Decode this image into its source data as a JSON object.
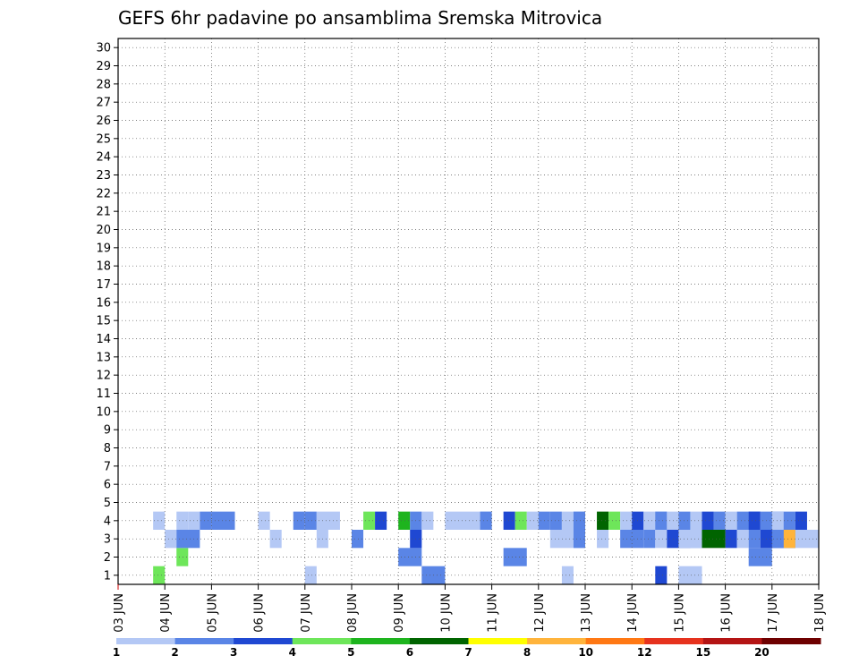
{
  "chart_data": {
    "type": "heatmap",
    "title": "GEFS 6hr padavine po ansamblima Sremska Mitrovica",
    "x_tick_labels": [
      "03 JUN",
      "04 JUN",
      "05 JUN",
      "06 JUN",
      "07 JUN",
      "08 JUN",
      "09 JUN",
      "10 JUN",
      "11 JUN",
      "12 JUN",
      "13 JUN",
      "14 JUN",
      "15 JUN",
      "16 JUN",
      "17 JUN",
      "18 JUN"
    ],
    "y_tick_labels": [
      "1",
      "2",
      "3",
      "4",
      "5",
      "6",
      "7",
      "8",
      "9",
      "10",
      "11",
      "12",
      "13",
      "14",
      "15",
      "16",
      "17",
      "18",
      "19",
      "20",
      "21",
      "22",
      "23",
      "24",
      "25",
      "26",
      "27",
      "28",
      "29",
      "30"
    ],
    "xlabel": "",
    "ylabel": "",
    "xlim_days": [
      0,
      15
    ],
    "ylim_members": [
      0.5,
      30.5
    ],
    "steps_per_day": 4,
    "grid": "dotted",
    "colorbar": {
      "labels": [
        "1",
        "2",
        "3",
        "4",
        "5",
        "6",
        "7",
        "8",
        "10",
        "12",
        "15",
        "20"
      ],
      "colors": [
        "#b4c8f5",
        "#5a85e6",
        "#1f48d2",
        "#6ee65a",
        "#1eb41e",
        "#006400",
        "#ffff00",
        "#ffb43c",
        "#ff7814",
        "#e6321e",
        "#b41414",
        "#6e0000"
      ]
    },
    "cells": [
      [
        3,
        1,
        4,
        1
      ],
      [
        4,
        3,
        1,
        1
      ],
      [
        16,
        1,
        1,
        1
      ],
      [
        26,
        1,
        2,
        2
      ],
      [
        38,
        1,
        1,
        1
      ],
      [
        46,
        1,
        3,
        1
      ],
      [
        33,
        2,
        2,
        2
      ],
      [
        48,
        1,
        1,
        2
      ],
      [
        5,
        2,
        4,
        1
      ],
      [
        24,
        2,
        2,
        2
      ],
      [
        54,
        2,
        2,
        2
      ],
      [
        66,
        2,
        3,
        1
      ],
      [
        13,
        3,
        1,
        1
      ],
      [
        17,
        3,
        1,
        1
      ],
      [
        20,
        3,
        2,
        1
      ],
      [
        5,
        3,
        2,
        2
      ],
      [
        25,
        3,
        1,
        1
      ],
      [
        25,
        3,
        3,
        1
      ],
      [
        37,
        3,
        1,
        3
      ],
      [
        39,
        3,
        2,
        1
      ],
      [
        41,
        3,
        1,
        1
      ],
      [
        43,
        3,
        2,
        2
      ],
      [
        45,
        3,
        2,
        1
      ],
      [
        46,
        3,
        1,
        1
      ],
      [
        47,
        3,
        3,
        3
      ],
      [
        48,
        3,
        1,
        2
      ],
      [
        49,
        3,
        1,
        1
      ],
      [
        50,
        3,
        6,
        2
      ],
      [
        52,
        3,
        3,
        1
      ],
      [
        53,
        3,
        1,
        1
      ],
      [
        54,
        3,
        2,
        1
      ],
      [
        55,
        3,
        3,
        3
      ],
      [
        56,
        3,
        2,
        2
      ],
      [
        57,
        3,
        8,
        1
      ],
      [
        58,
        3,
        1,
        2
      ],
      [
        3,
        4,
        1,
        1
      ],
      [
        5,
        4,
        1,
        1
      ],
      [
        6,
        4,
        1,
        1
      ],
      [
        7,
        4,
        2,
        1
      ],
      [
        8,
        4,
        2,
        2
      ],
      [
        12,
        4,
        1,
        1
      ],
      [
        15,
        4,
        2,
        1
      ],
      [
        16,
        4,
        2,
        1
      ],
      [
        17,
        4,
        1,
        2
      ],
      [
        21,
        4,
        4,
        1
      ],
      [
        22,
        4,
        3,
        1
      ],
      [
        24,
        4,
        5,
        1
      ],
      [
        25,
        4,
        2,
        1
      ],
      [
        26,
        4,
        1,
        1
      ],
      [
        28,
        4,
        1,
        2
      ],
      [
        30,
        4,
        1,
        2
      ],
      [
        31,
        4,
        2,
        1
      ],
      [
        33,
        4,
        3,
        1
      ],
      [
        34,
        4,
        4,
        1
      ],
      [
        35,
        4,
        1,
        1
      ],
      [
        36,
        4,
        2,
        1
      ],
      [
        37,
        4,
        2,
        1
      ],
      [
        38,
        4,
        1,
        2
      ],
      [
        39,
        4,
        2,
        1
      ],
      [
        41,
        4,
        6,
        1
      ],
      [
        42,
        4,
        4,
        1
      ],
      [
        43,
        4,
        1,
        1
      ],
      [
        44,
        4,
        3,
        1
      ],
      [
        45,
        4,
        1,
        2
      ],
      [
        46,
        4,
        2,
        1
      ],
      [
        47,
        4,
        1,
        1
      ],
      [
        48,
        4,
        2,
        1
      ],
      [
        49,
        4,
        1,
        1
      ],
      [
        50,
        4,
        3,
        1
      ],
      [
        51,
        4,
        2,
        1
      ],
      [
        52,
        4,
        1,
        1
      ],
      [
        53,
        4,
        2,
        2
      ],
      [
        54,
        4,
        3,
        1
      ],
      [
        55,
        4,
        2,
        2
      ],
      [
        56,
        4,
        1,
        1
      ],
      [
        57,
        4,
        2,
        1
      ],
      [
        58,
        4,
        3,
        1
      ]
    ]
  }
}
